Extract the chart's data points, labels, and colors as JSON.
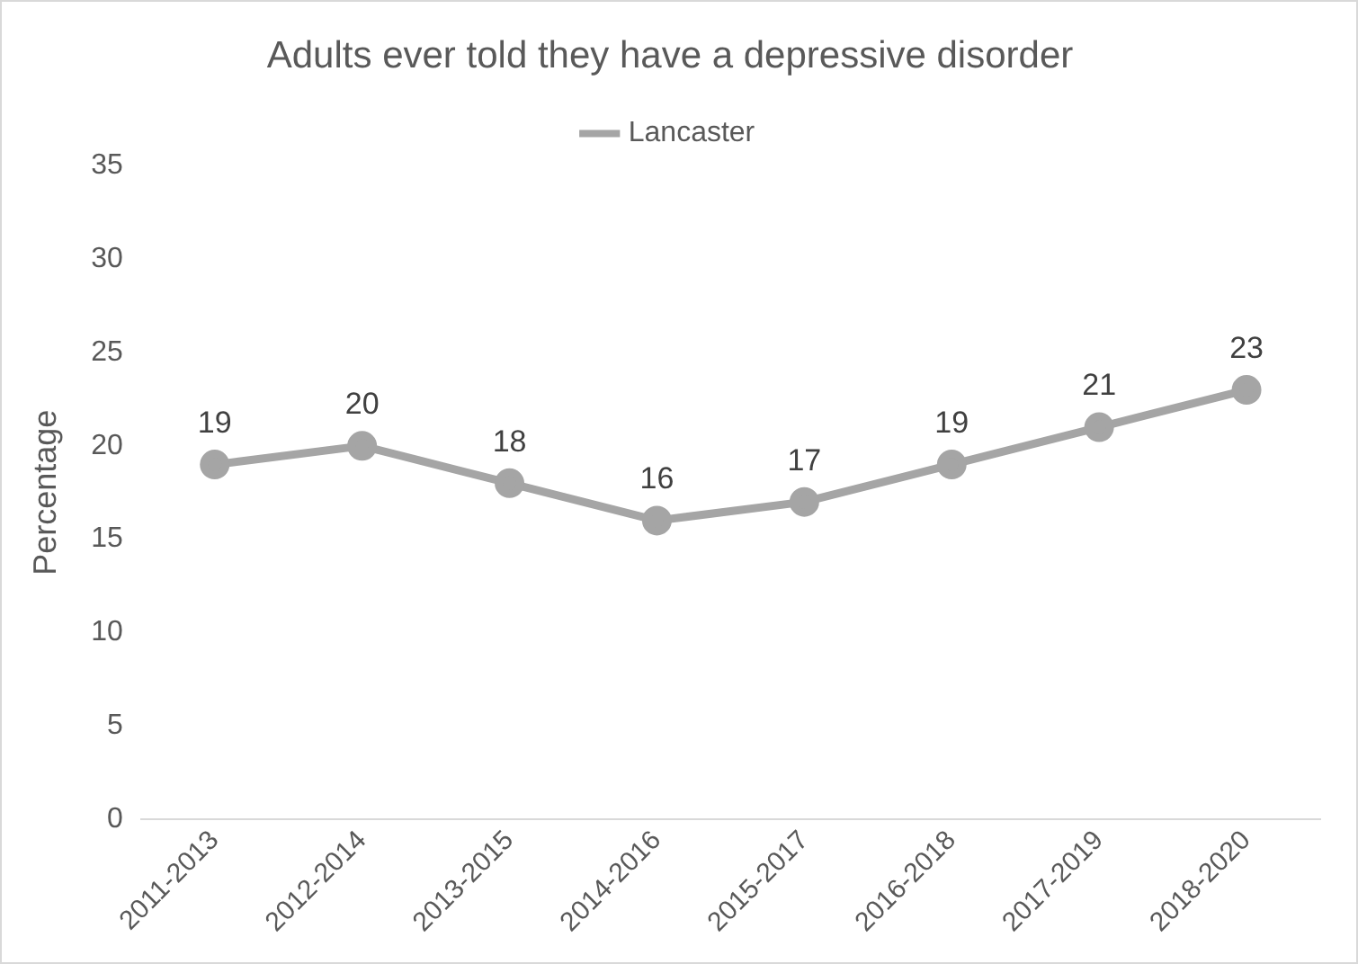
{
  "chart_data": {
    "type": "line",
    "title": "Adults ever told they have a depressive disorder",
    "ylabel": "Percentage",
    "categories": [
      "2011-2013",
      "2012-2014",
      "2013-2015",
      "2014-2016",
      "2015-2017",
      "2016-2018",
      "2017-2019",
      "2018-2020"
    ],
    "series": [
      {
        "name": "Lancaster",
        "color": "#a5a5a5",
        "values": [
          19,
          20,
          18,
          16,
          17,
          19,
          21,
          23
        ]
      }
    ],
    "ylim": [
      0,
      35
    ],
    "yticks": [
      0,
      5,
      10,
      15,
      20,
      25,
      30,
      35
    ],
    "grid": false,
    "legend": "top",
    "marker": "circle",
    "data_labels": true
  }
}
